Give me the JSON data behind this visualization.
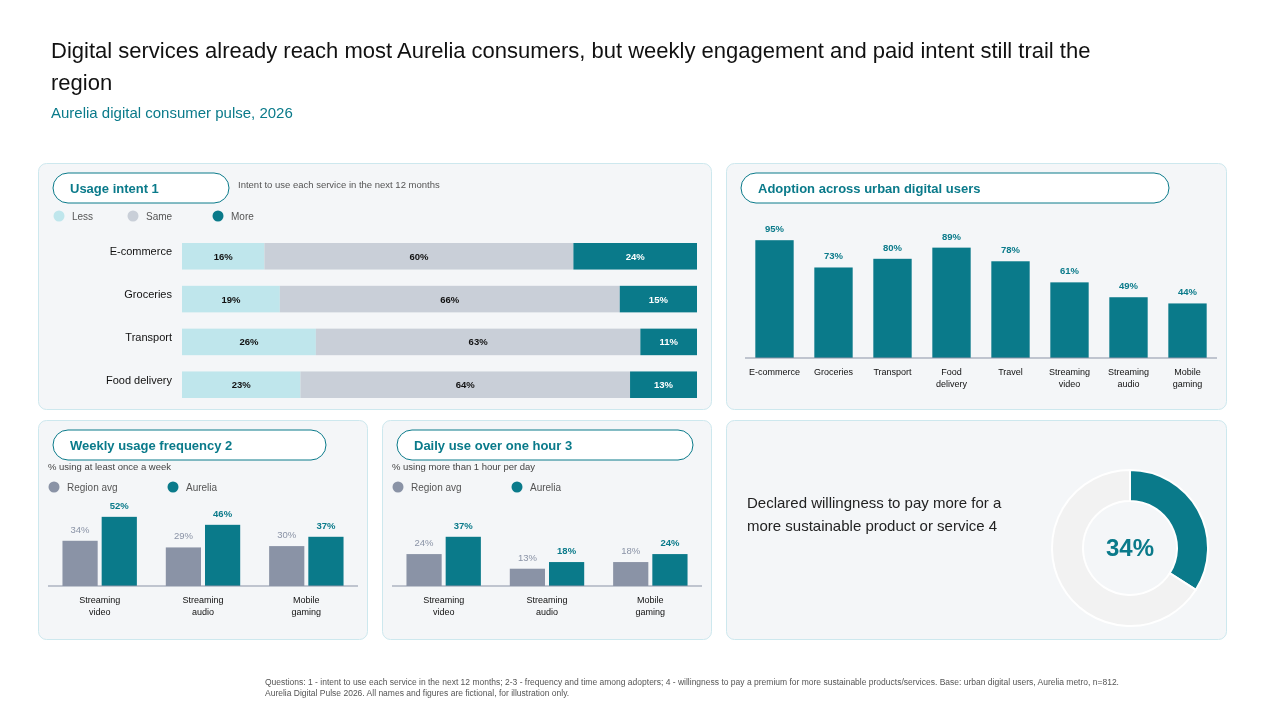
{
  "chart_data": [
    {
      "type": "other",
      "title": "Digital services already reach most Aurelia consumers, but weekly engagement and paid intent still trail the region",
      "subtitle": "Aurelia digital consumer pulse, 2026",
      "annotations": [
        "Questions: 1 - intent to use each service in the next 12 months; 2-3 - frequency and time among adopters; 4 - willingness to pay a premium for more sustainable products/services. Base: urban digital users, Aurelia metro, n=812. Aurelia Digital Pulse 2026. All names and figures are fictional, for illustration only."
      ]
    },
    {
      "type": "bar",
      "orientation": "horizontal",
      "stacked": true,
      "title": "Usage intent 1",
      "subtitle": "Intent to use each service in the next 12 months",
      "categories": [
        "E-commerce",
        "Groceries",
        "Transport",
        "Food delivery"
      ],
      "xlim": [
        0,
        100
      ],
      "legend": "top left",
      "series": [
        {
          "name": "Less",
          "color": "#bfe6ec",
          "values": [
            16,
            19,
            26,
            23
          ],
          "value_labels": [
            "16%",
            "19%",
            "26%",
            "23%"
          ]
        },
        {
          "name": "Same",
          "color": "#c9cfd8",
          "values": [
            60,
            66,
            63,
            64
          ],
          "value_labels": [
            "60%",
            "66%",
            "63%",
            "64%"
          ]
        },
        {
          "name": "More",
          "color": "#0a7a8a",
          "values": [
            24,
            15,
            11,
            13
          ],
          "value_labels": [
            "24%",
            "15%",
            "11%",
            "13%"
          ]
        }
      ]
    },
    {
      "type": "bar",
      "title": "Adoption across urban digital users",
      "categories": [
        "E-commerce",
        "Groceries",
        "Transport",
        "Food delivery",
        "Travel",
        "Streaming video",
        "Streaming audio",
        "Mobile gaming"
      ],
      "series": [
        {
          "color": "#0a7a8a",
          "values": [
            95,
            73,
            80,
            89,
            78,
            61,
            49,
            44
          ],
          "value_labels": [
            "95%",
            "73%",
            "80%",
            "89%",
            "78%",
            "61%",
            "49%",
            "44%"
          ]
        }
      ]
    },
    {
      "type": "bar",
      "title": "Weekly usage frequency 2",
      "subtitle": "% using at least once a week",
      "categories": [
        "Streaming video",
        "Streaming audio",
        "Mobile gaming"
      ],
      "legend": "top left",
      "series": [
        {
          "name": "Region avg",
          "color": "#8a93a6",
          "values": [
            34,
            29,
            30
          ],
          "value_labels": [
            "34%",
            "29%",
            "30%"
          ]
        },
        {
          "name": "Aurelia",
          "color": "#0a7a8a",
          "values": [
            52,
            46,
            37
          ],
          "value_labels": [
            "52%",
            "46%",
            "37%"
          ]
        }
      ]
    },
    {
      "type": "bar",
      "title": "Daily use over one hour 3",
      "subtitle": "% using more than 1 hour per day",
      "categories": [
        "Streaming video",
        "Streaming audio",
        "Mobile gaming"
      ],
      "legend": "top left",
      "series": [
        {
          "name": "Region avg",
          "color": "#8a93a6",
          "values": [
            24,
            13,
            18
          ],
          "value_labels": [
            "24%",
            "13%",
            "18%"
          ]
        },
        {
          "name": "Aurelia",
          "color": "#0a7a8a",
          "values": [
            37,
            18,
            24
          ],
          "value_labels": [
            "37%",
            "18%",
            "24%"
          ]
        }
      ]
    },
    {
      "type": "donut",
      "title": "Declared willingness to pay more for a more sustainable product or service 4",
      "categories": [
        null,
        null
      ],
      "values": [
        34,
        66
      ],
      "colors": [
        "#0a7a8a",
        "#f2f2f2"
      ],
      "value_labels": [
        "34%",
        null
      ]
    }
  ]
}
